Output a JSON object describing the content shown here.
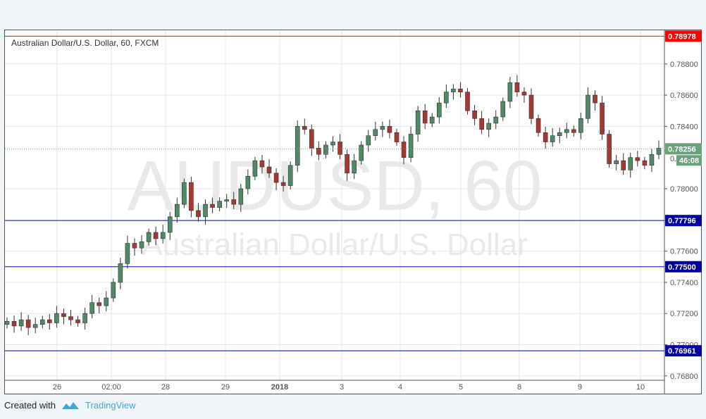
{
  "chart_data": {
    "type": "candlestick",
    "title": "Australian Dollar/U.S. Dollar, 60, FXCM",
    "watermark": {
      "symbol": "AUDUSD, 60",
      "name": "Australian Dollar/U.S. Dollar"
    },
    "ylim": [
      0.7676,
      0.7902
    ],
    "yticks": [
      "0.78800",
      "0.78600",
      "0.78400",
      "0.78000",
      "0.77600",
      "0.77400",
      "0.77200",
      "0.77000",
      "0.76800"
    ],
    "ytick_values": [
      0.788,
      0.786,
      0.784,
      0.78,
      0.776,
      0.774,
      0.772,
      0.77,
      0.768
    ],
    "xticks": [
      "26",
      "02:00",
      "28",
      "29",
      "2018",
      "3",
      "4",
      "5",
      "8",
      "9",
      "10"
    ],
    "horizontal_lines": [
      {
        "value": 0.78978,
        "label": "0.78978",
        "color": "#ff0000"
      },
      {
        "value": 0.77796,
        "label": "0.77796",
        "color": "#0000a0"
      },
      {
        "value": 0.775,
        "label": "0.77500",
        "color": "#0000a0"
      },
      {
        "value": 0.76961,
        "label": "0.76961",
        "color": "#0000a0"
      }
    ],
    "last_price": {
      "value": 0.78256,
      "label": "0.78256",
      "countdown": "46:08",
      "color": "#6aa07a"
    },
    "colors": {
      "up": "#4e8a63",
      "down": "#a8372f"
    },
    "close": [
      0.7715,
      0.7712,
      0.7716,
      0.7711,
      0.7713,
      0.7716,
      0.7714,
      0.772,
      0.7718,
      0.7716,
      0.7714,
      0.772,
      0.7727,
      0.7725,
      0.773,
      0.774,
      0.7752,
      0.7765,
      0.7762,
      0.7766,
      0.7772,
      0.7768,
      0.7772,
      0.7782,
      0.779,
      0.7804,
      0.7786,
      0.7782,
      0.779,
      0.7788,
      0.7792,
      0.7793,
      0.779,
      0.78,
      0.7808,
      0.7818,
      0.7814,
      0.781,
      0.7804,
      0.7802,
      0.7815,
      0.784,
      0.7838,
      0.7826,
      0.7822,
      0.7828,
      0.783,
      0.7822,
      0.781,
      0.7818,
      0.7828,
      0.7834,
      0.7838,
      0.784,
      0.7836,
      0.783,
      0.782,
      0.7835,
      0.785,
      0.7842,
      0.7846,
      0.7855,
      0.7862,
      0.7864,
      0.7862,
      0.785,
      0.7845,
      0.7838,
      0.7842,
      0.7846,
      0.7856,
      0.7868,
      0.7862,
      0.786,
      0.7845,
      0.7836,
      0.783,
      0.7834,
      0.7836,
      0.7838,
      0.7836,
      0.7845,
      0.786,
      0.7855,
      0.7835,
      0.7816,
      0.7818,
      0.7812,
      0.782,
      0.7818,
      0.7815,
      0.7822,
      0.7826
    ]
  },
  "footer": {
    "created_with": "Created with",
    "brand": "TradingView"
  }
}
